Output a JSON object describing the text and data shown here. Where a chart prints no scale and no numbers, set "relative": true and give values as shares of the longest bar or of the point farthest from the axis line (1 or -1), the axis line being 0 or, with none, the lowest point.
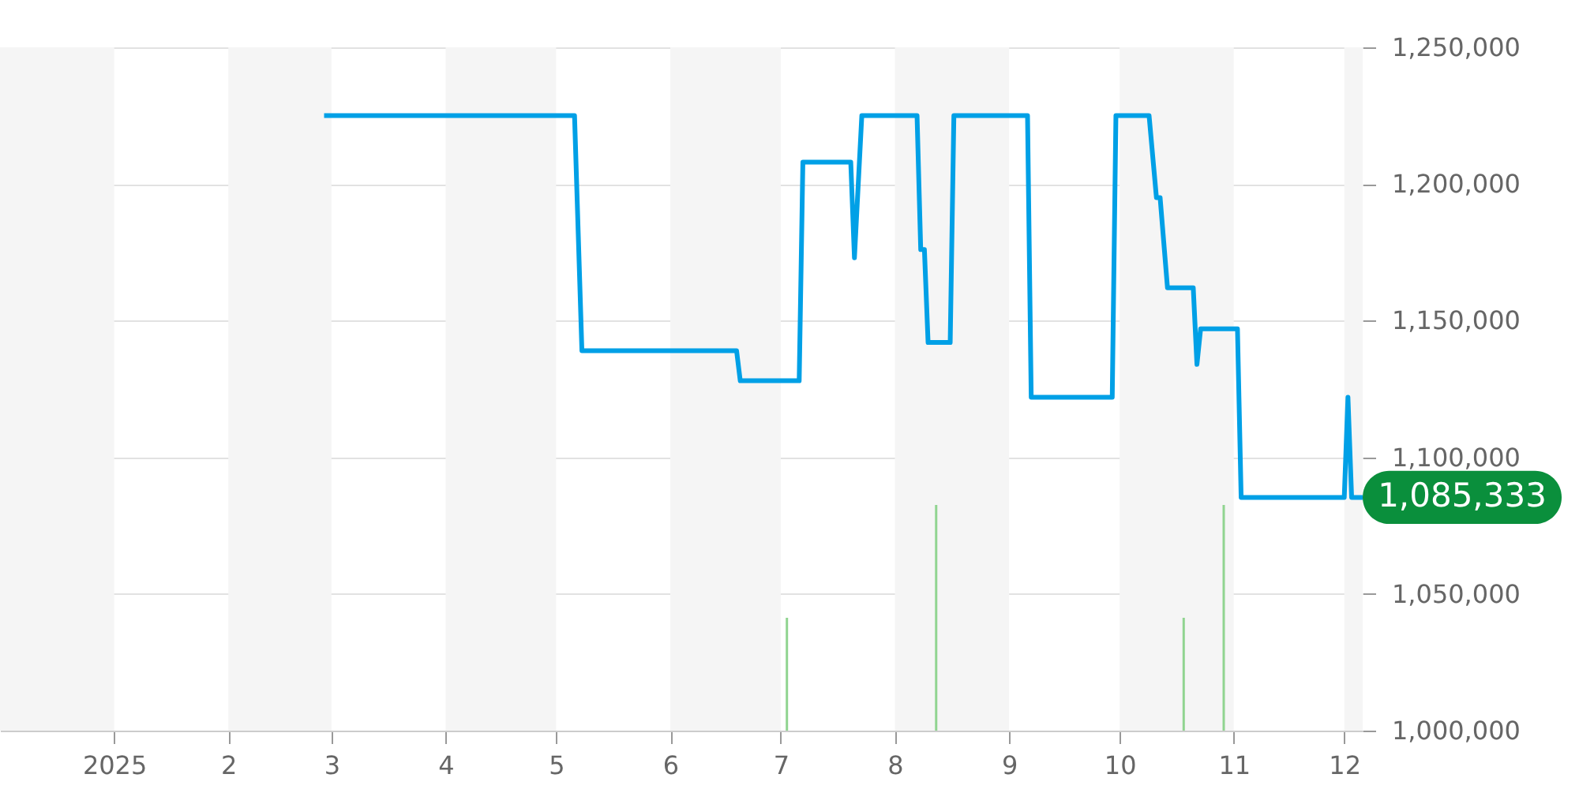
{
  "chart_data": [
    {
      "type": "line",
      "xlim": [
        "2024-12-01",
        "2025-12-06"
      ],
      "xticks": [
        {
          "value": "2025-01-01",
          "label": "2025"
        },
        {
          "value": "2025-02-01",
          "label": "2"
        },
        {
          "value": "2025-03-01",
          "label": "3"
        },
        {
          "value": "2025-04-01",
          "label": "4"
        },
        {
          "value": "2025-05-01",
          "label": "5"
        },
        {
          "value": "2025-06-01",
          "label": "6"
        },
        {
          "value": "2025-07-01",
          "label": "7"
        },
        {
          "value": "2025-08-01",
          "label": "8"
        },
        {
          "value": "2025-09-01",
          "label": "9"
        },
        {
          "value": "2025-10-01",
          "label": "10"
        },
        {
          "value": "2025-11-01",
          "label": "11"
        },
        {
          "value": "2025-12-01",
          "label": "12"
        }
      ],
      "ylim": [
        1000000,
        1250000
      ],
      "yticks": [
        {
          "value": 1000000,
          "label": "1,000,000"
        },
        {
          "value": 1050000,
          "label": "1,050,000"
        },
        {
          "value": 1100000,
          "label": "1,100,000"
        },
        {
          "value": 1150000,
          "label": "1,150,000"
        },
        {
          "value": 1200000,
          "label": "1,200,000"
        },
        {
          "value": 1250000,
          "label": "1,250,000"
        }
      ],
      "grid": "y",
      "bands": [
        {
          "axis": "x",
          "from": "2024-12-01",
          "to": "2025-01-01",
          "color": "#f5f5f5"
        },
        {
          "axis": "x",
          "from": "2025-02-01",
          "to": "2025-03-01",
          "color": "#f5f5f5"
        },
        {
          "axis": "x",
          "from": "2025-04-01",
          "to": "2025-05-01",
          "color": "#f5f5f5"
        },
        {
          "axis": "x",
          "from": "2025-06-01",
          "to": "2025-07-01",
          "color": "#f5f5f5"
        },
        {
          "axis": "x",
          "from": "2025-08-01",
          "to": "2025-09-01",
          "color": "#f5f5f5"
        },
        {
          "axis": "x",
          "from": "2025-10-01",
          "to": "2025-11-01",
          "color": "#f5f5f5"
        },
        {
          "axis": "x",
          "from": "2025-12-01",
          "to": "2025-12-06",
          "color": "#f5f5f5"
        }
      ],
      "series": [
        {
          "color": "#00a0e6",
          "x": [
            "2025-02-27",
            "2025-05-06",
            "2025-05-08",
            "2025-06-19",
            "2025-06-20",
            "2025-07-06",
            "2025-07-07",
            "2025-07-20",
            "2025-07-21",
            "2025-07-23",
            "2025-08-07",
            "2025-08-08",
            "2025-08-09",
            "2025-08-10",
            "2025-08-16",
            "2025-08-17",
            "2025-09-06",
            "2025-09-07",
            "2025-09-29",
            "2025-09-30",
            "2025-10-09",
            "2025-10-11",
            "2025-10-12",
            "2025-10-14",
            "2025-10-21",
            "2025-10-22",
            "2025-10-23",
            "2025-11-02",
            "2025-11-03",
            "2025-12-01",
            "2025-12-02",
            "2025-12-03",
            "2025-12-06"
          ],
          "values": [
            1225000,
            1225000,
            1139000,
            1139000,
            1128000,
            1128000,
            1208000,
            1208000,
            1173000,
            1225000,
            1225000,
            1176000,
            1176000,
            1142000,
            1142000,
            1225000,
            1225000,
            1122000,
            1122000,
            1225000,
            1225000,
            1195000,
            1195000,
            1162000,
            1162000,
            1134000,
            1147000,
            1147000,
            1085333,
            1085333,
            1122000,
            1085333,
            1085333
          ]
        }
      ],
      "annotations": [
        {
          "text": "1,085,333",
          "x": "2025-12-06",
          "y": 1085333
        }
      ]
    },
    {
      "type": "bar",
      "relative": true,
      "xlim": [
        "2024-12-01",
        "2025-12-06"
      ],
      "x": [
        "2025-07-03",
        "2025-08-13",
        "2025-10-20",
        "2025-10-31"
      ],
      "values": [
        0.5,
        1,
        0.5,
        1
      ],
      "color": "#90d490"
    }
  ]
}
